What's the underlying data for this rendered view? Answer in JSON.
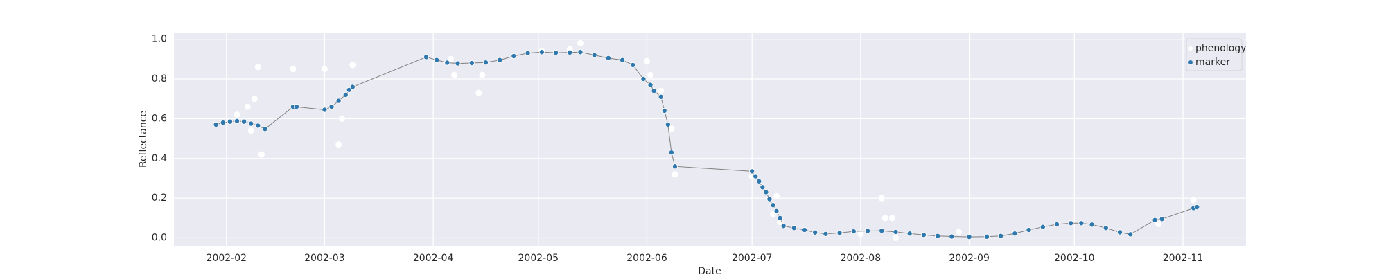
{
  "chart_data": {
    "type": "scatter-line",
    "x_label": "Date",
    "y_label": "Reflectance",
    "xlim": [
      "2002-01-17",
      "2002-11-19"
    ],
    "xticks": [
      {
        "value": "2002-02-01",
        "label": "2002-02"
      },
      {
        "value": "2002-03-01",
        "label": "2002-03"
      },
      {
        "value": "2002-04-01",
        "label": "2002-04"
      },
      {
        "value": "2002-05-01",
        "label": "2002-05"
      },
      {
        "value": "2002-06-01",
        "label": "2002-06"
      },
      {
        "value": "2002-07-01",
        "label": "2002-07"
      },
      {
        "value": "2002-08-01",
        "label": "2002-08"
      },
      {
        "value": "2002-09-01",
        "label": "2002-09"
      },
      {
        "value": "2002-10-01",
        "label": "2002-10"
      },
      {
        "value": "2002-11-01",
        "label": "2002-11"
      }
    ],
    "ylim": [
      -0.04,
      1.03
    ],
    "yticks": [
      {
        "value": 0,
        "label": "0.0"
      },
      {
        "value": 0.2,
        "label": "0.2"
      },
      {
        "value": 0.4,
        "label": "0.4"
      },
      {
        "value": 0.6,
        "label": "0.6"
      },
      {
        "value": 0.8,
        "label": "0.8"
      },
      {
        "value": 1,
        "label": "1.0"
      }
    ],
    "grid": true,
    "legend": "upper right",
    "line_color": "#808080",
    "series": [
      {
        "name": "phenology",
        "color": "#ffffff",
        "x": [
          "2002-02-04",
          "2002-02-07",
          "2002-02-08",
          "2002-02-09",
          "2002-02-10",
          "2002-02-11",
          "2002-02-20",
          "2002-03-01",
          "2002-03-05",
          "2002-03-06",
          "2002-03-09",
          "2002-04-06",
          "2002-04-07",
          "2002-04-14",
          "2002-04-15",
          "2002-05-02",
          "2002-05-10",
          "2002-05-13",
          "2002-06-01",
          "2002-06-02",
          "2002-06-05",
          "2002-06-08",
          "2002-06-09",
          "2002-07-01",
          "2002-07-07",
          "2002-07-08",
          "2002-07-09",
          "2002-08-01",
          "2002-08-07",
          "2002-08-08",
          "2002-08-10",
          "2002-08-11",
          "2002-08-29",
          "2002-10-25",
          "2002-11-04"
        ],
        "values": [
          0.62,
          0.66,
          0.54,
          0.7,
          0.86,
          0.42,
          0.85,
          0.85,
          0.47,
          0.6,
          0.87,
          0.9,
          0.82,
          0.73,
          0.82,
          0.94,
          0.95,
          0.98,
          0.89,
          0.82,
          0.74,
          0.55,
          0.32,
          0.31,
          0.12,
          0.21,
          0.08,
          0.02,
          0.2,
          0.1,
          0.1,
          0.0,
          0.03,
          0.07,
          0.19
        ]
      },
      {
        "name": "marker",
        "color": "#2f78ad",
        "x": [
          "2002-01-29",
          "2002-01-31",
          "2002-02-02",
          "2002-02-04",
          "2002-02-06",
          "2002-02-08",
          "2002-02-10",
          "2002-02-12",
          "2002-02-20",
          "2002-02-21",
          "2002-03-01",
          "2002-03-03",
          "2002-03-05",
          "2002-03-07",
          "2002-03-08",
          "2002-03-09",
          "2002-03-30",
          "2002-04-02",
          "2002-04-05",
          "2002-04-08",
          "2002-04-12",
          "2002-04-16",
          "2002-04-20",
          "2002-04-24",
          "2002-04-28",
          "2002-05-02",
          "2002-05-06",
          "2002-05-10",
          "2002-05-13",
          "2002-05-17",
          "2002-05-21",
          "2002-05-25",
          "2002-05-28",
          "2002-05-31",
          "2002-06-02",
          "2002-06-03",
          "2002-06-05",
          "2002-06-06",
          "2002-06-07",
          "2002-06-08",
          "2002-06-09",
          "2002-07-01",
          "2002-07-02",
          "2002-07-03",
          "2002-07-04",
          "2002-07-05",
          "2002-07-06",
          "2002-07-07",
          "2002-07-08",
          "2002-07-09",
          "2002-07-10",
          "2002-07-13",
          "2002-07-16",
          "2002-07-19",
          "2002-07-22",
          "2002-07-26",
          "2002-07-30",
          "2002-08-03",
          "2002-08-07",
          "2002-08-11",
          "2002-08-15",
          "2002-08-19",
          "2002-08-23",
          "2002-08-27",
          "2002-09-01",
          "2002-09-06",
          "2002-09-10",
          "2002-09-14",
          "2002-09-18",
          "2002-09-22",
          "2002-09-26",
          "2002-09-30",
          "2002-10-03",
          "2002-10-06",
          "2002-10-10",
          "2002-10-14",
          "2002-10-17",
          "2002-10-24",
          "2002-10-26",
          "2002-11-04",
          "2002-11-05"
        ],
        "values": [
          0.57,
          0.58,
          0.585,
          0.588,
          0.585,
          0.575,
          0.565,
          0.548,
          0.66,
          0.66,
          0.645,
          0.66,
          0.69,
          0.72,
          0.745,
          0.76,
          0.91,
          0.895,
          0.882,
          0.878,
          0.88,
          0.883,
          0.895,
          0.915,
          0.93,
          0.935,
          0.932,
          0.933,
          0.935,
          0.92,
          0.905,
          0.895,
          0.87,
          0.8,
          0.77,
          0.74,
          0.71,
          0.64,
          0.57,
          0.43,
          0.36,
          0.335,
          0.31,
          0.285,
          0.255,
          0.23,
          0.195,
          0.165,
          0.135,
          0.1,
          0.06,
          0.05,
          0.04,
          0.027,
          0.02,
          0.025,
          0.033,
          0.035,
          0.036,
          0.03,
          0.022,
          0.015,
          0.01,
          0.007,
          0.005,
          0.006,
          0.01,
          0.022,
          0.04,
          0.055,
          0.068,
          0.074,
          0.074,
          0.067,
          0.05,
          0.028,
          0.018,
          0.09,
          0.095,
          0.15,
          0.155
        ]
      }
    ]
  }
}
